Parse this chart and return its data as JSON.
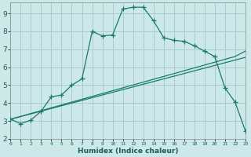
{
  "title": "",
  "xlabel": "Humidex (Indice chaleur)",
  "bg_color": "#cce8e8",
  "grid_color": "#aacccc",
  "line_color": "#1a7a6e",
  "xlim": [
    0,
    23
  ],
  "ylim": [
    2,
    9.6
  ],
  "ytick_values": [
    2,
    3,
    4,
    5,
    6,
    7,
    8,
    9
  ],
  "xtick_positions": [
    0,
    1,
    2,
    3,
    4,
    5,
    6,
    7,
    8,
    9,
    10,
    11,
    12,
    13,
    14,
    15,
    16,
    17,
    18,
    19,
    20,
    21,
    22,
    23
  ],
  "xtick_labels": [
    "0",
    "1",
    "2",
    "3",
    "4",
    "5",
    "6",
    "7",
    "8",
    "9",
    "10",
    "11",
    "12",
    "13",
    "14",
    "15",
    "16",
    "17",
    "18",
    "19",
    "20",
    "21",
    "22",
    "23"
  ],
  "line1_x": [
    0,
    1,
    2,
    3,
    4,
    5,
    6,
    7,
    8,
    9,
    10,
    11,
    12,
    13,
    14,
    15,
    16,
    17,
    18,
    19,
    20,
    21,
    22,
    23
  ],
  "line1_y": [
    3.1,
    2.85,
    3.05,
    3.55,
    4.35,
    4.45,
    5.0,
    5.35,
    8.0,
    7.75,
    7.8,
    9.25,
    9.35,
    9.35,
    8.6,
    7.65,
    7.5,
    7.45,
    7.2,
    6.9,
    6.6,
    4.85,
    4.05,
    2.45
  ],
  "line2_x": [
    0,
    23
  ],
  "line2_y": [
    3.1,
    6.55
  ],
  "line3_x": [
    0,
    22,
    23
  ],
  "line3_y": [
    3.1,
    6.6,
    6.9
  ]
}
